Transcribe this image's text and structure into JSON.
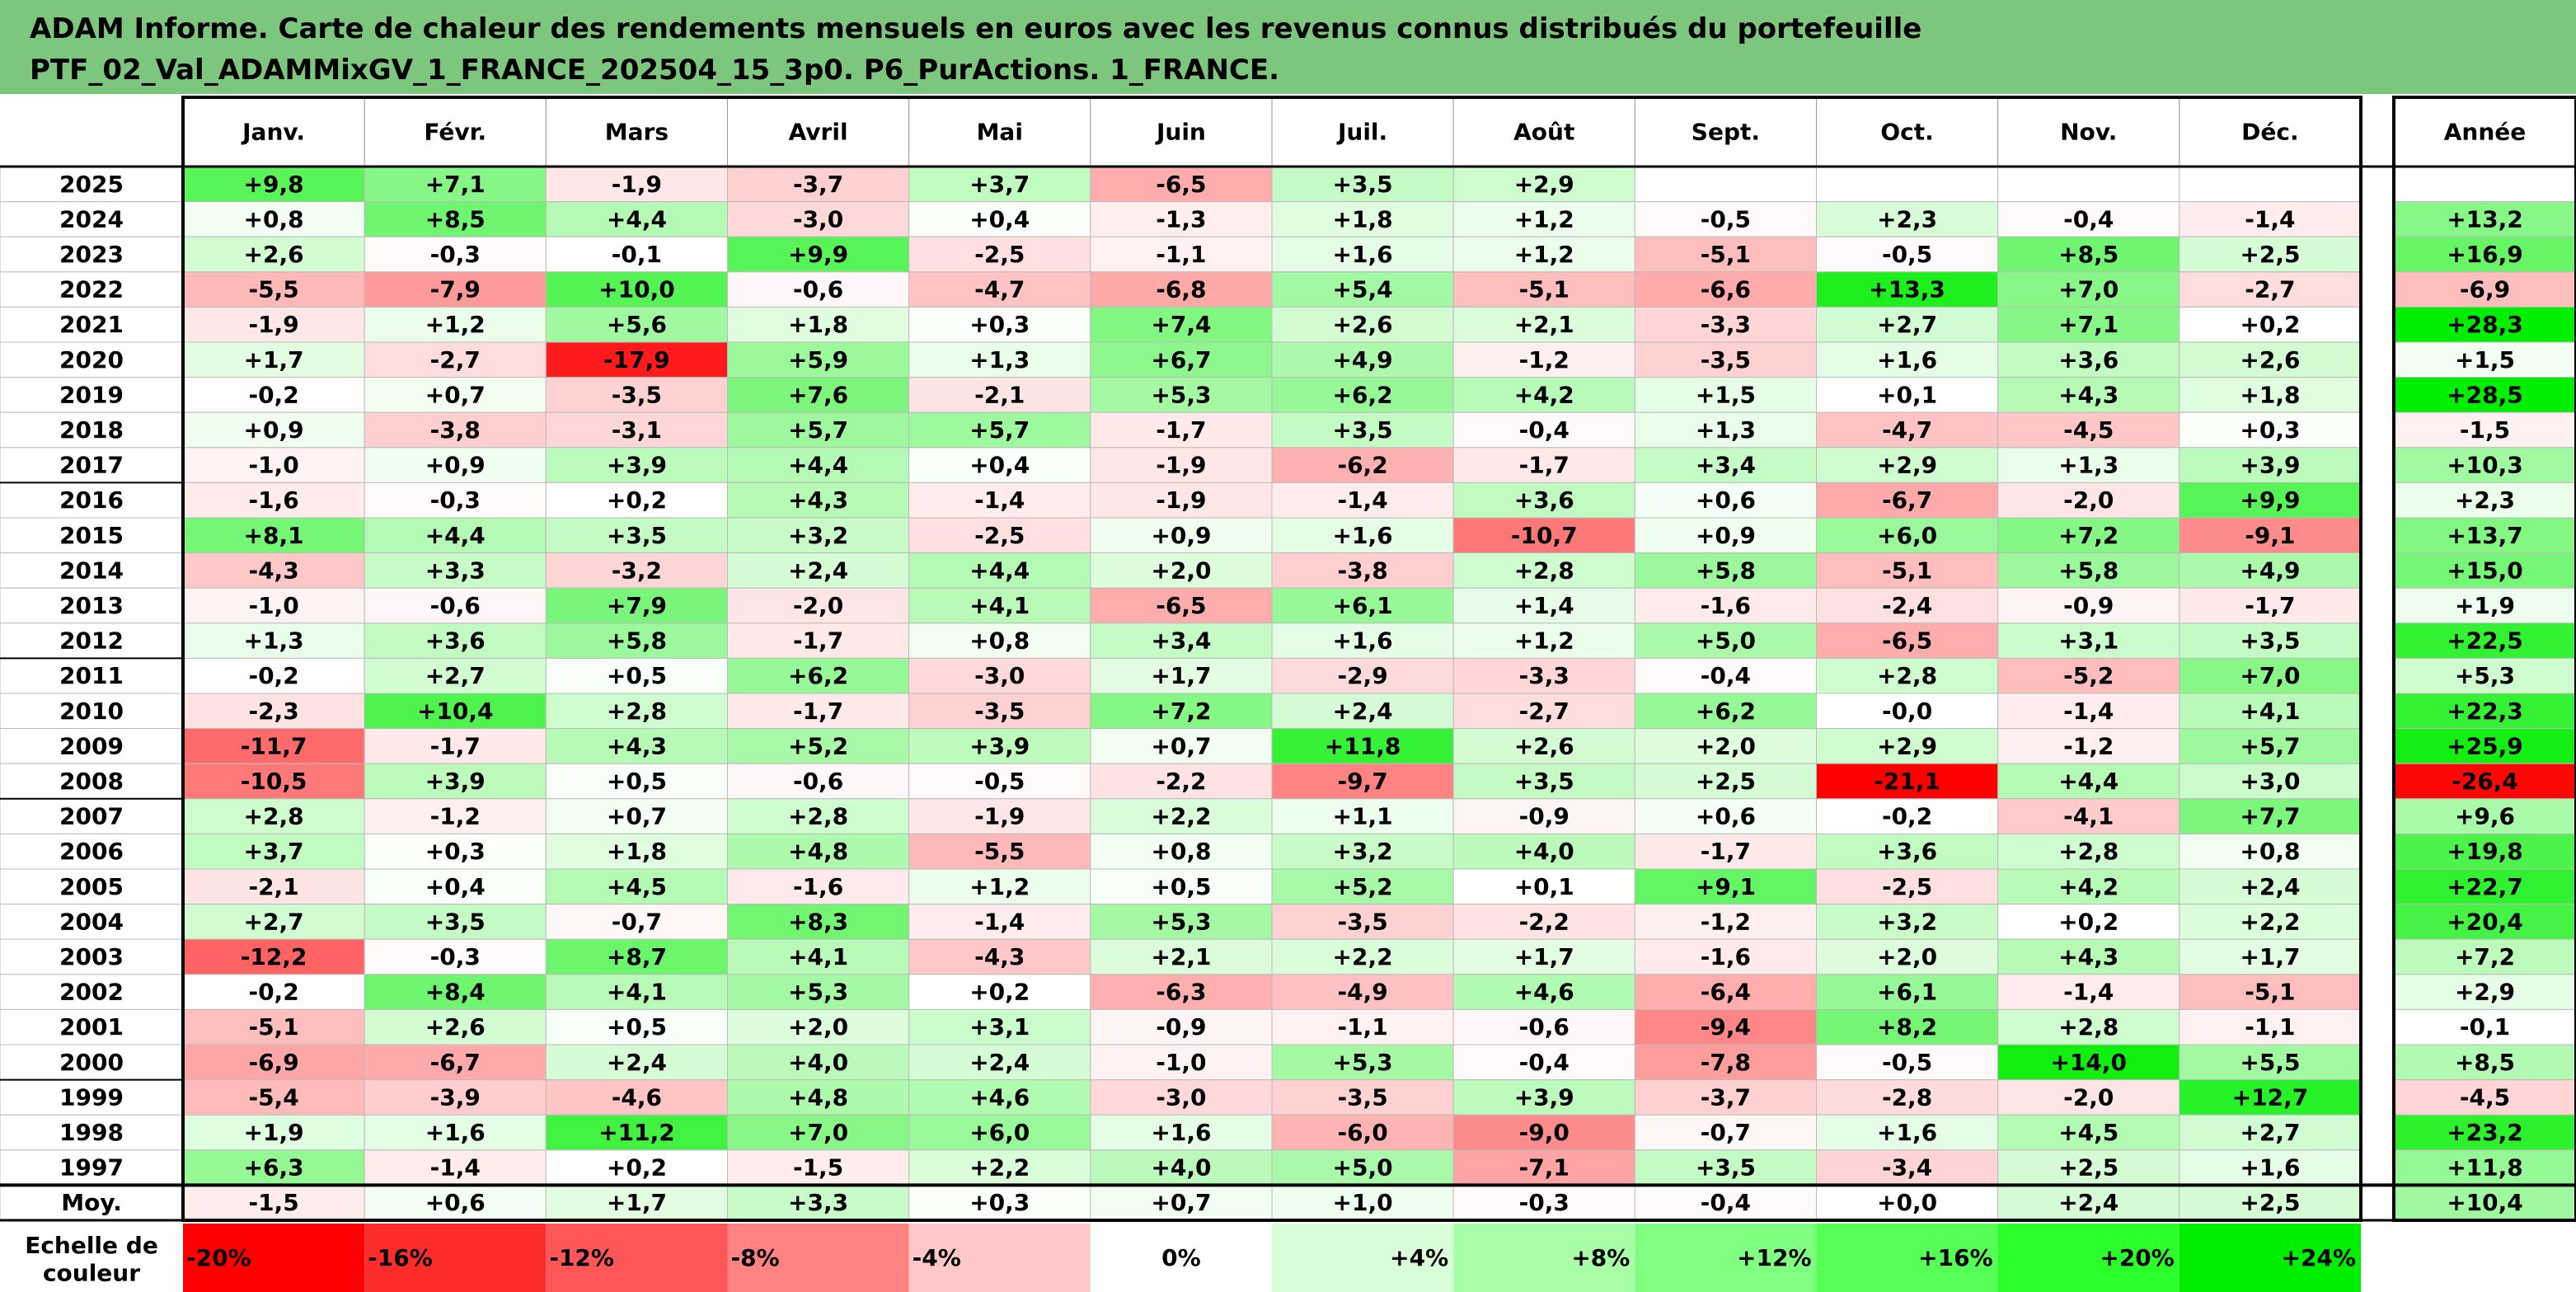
{
  "title": {
    "line1": "ADAM Informe. Carte de chaleur des rendements mensuels en euros avec les revenus connus distribués du portefeuille",
    "line2": "PTF_02_Val_ADAMMixGV_1_FRANCE_202504_15_3p0. P6_PurActions. 1_FRANCE."
  },
  "chart_data": {
    "type": "heatmap",
    "title": "ADAM Informe. Carte de chaleur des rendements mensuels en euros avec les revenus connus distribués du portefeuille PTF_02_Val_ADAMMixGV_1_FRANCE_202504_15_3p0. P6_PurActions. 1_FRANCE.",
    "columns": [
      "Janv.",
      "Févr.",
      "Mars",
      "Avril",
      "Mai",
      "Juin",
      "Juil.",
      "Août",
      "Sept.",
      "Oct.",
      "Nov.",
      "Déc."
    ],
    "year_column_label": "Année",
    "rows": [
      {
        "year": "2025",
        "values": [
          "+9,8",
          "+7,1",
          "-1,9",
          "-3,7",
          "+3,7",
          "-6,5",
          "+3,5",
          "+2,9",
          "",
          "",
          "",
          ""
        ],
        "annual": ""
      },
      {
        "year": "2024",
        "values": [
          "+0,8",
          "+8,5",
          "+4,4",
          "-3,0",
          "+0,4",
          "-1,3",
          "+1,8",
          "+1,2",
          "-0,5",
          "+2,3",
          "-0,4",
          "-1,4"
        ],
        "annual": "+13,2"
      },
      {
        "year": "2023",
        "values": [
          "+2,6",
          "-0,3",
          "-0,1",
          "+9,9",
          "-2,5",
          "-1,1",
          "+1,6",
          "+1,2",
          "-5,1",
          "-0,5",
          "+8,5",
          "+2,5"
        ],
        "annual": "+16,9"
      },
      {
        "year": "2022",
        "values": [
          "-5,5",
          "-7,9",
          "+10,0",
          "-0,6",
          "-4,7",
          "-6,8",
          "+5,4",
          "-5,1",
          "-6,6",
          "+13,3",
          "+7,0",
          "-2,7"
        ],
        "annual": "-6,9"
      },
      {
        "year": "2021",
        "values": [
          "-1,9",
          "+1,2",
          "+5,6",
          "+1,8",
          "+0,3",
          "+7,4",
          "+2,6",
          "+2,1",
          "-3,3",
          "+2,7",
          "+7,1",
          "+0,2"
        ],
        "annual": "+28,3"
      },
      {
        "year": "2020",
        "values": [
          "+1,7",
          "-2,7",
          "-17,9",
          "+5,9",
          "+1,3",
          "+6,7",
          "+4,9",
          "-1,2",
          "-3,5",
          "+1,6",
          "+3,6",
          "+2,6"
        ],
        "annual": "+1,5"
      },
      {
        "year": "2019",
        "values": [
          "-0,2",
          "+0,7",
          "-3,5",
          "+7,6",
          "-2,1",
          "+5,3",
          "+6,2",
          "+4,2",
          "+1,5",
          "+0,1",
          "+4,3",
          "+1,8"
        ],
        "annual": "+28,5"
      },
      {
        "year": "2018",
        "values": [
          "+0,9",
          "-3,8",
          "-3,1",
          "+5,7",
          "+5,7",
          "-1,7",
          "+3,5",
          "-0,4",
          "+1,3",
          "-4,7",
          "-4,5",
          "+0,3"
        ],
        "annual": "-1,5"
      },
      {
        "year": "2017",
        "values": [
          "-1,0",
          "+0,9",
          "+3,9",
          "+4,4",
          "+0,4",
          "-1,9",
          "-6,2",
          "-1,7",
          "+3,4",
          "+2,9",
          "+1,3",
          "+3,9"
        ],
        "annual": "+10,3"
      },
      {
        "year": "2016",
        "values": [
          "-1,6",
          "-0,3",
          "+0,2",
          "+4,3",
          "-1,4",
          "-1,9",
          "-1,4",
          "+3,6",
          "+0,6",
          "-6,7",
          "-2,0",
          "+9,9"
        ],
        "annual": "+2,3"
      },
      {
        "year": "2015",
        "values": [
          "+8,1",
          "+4,4",
          "+3,5",
          "+3,2",
          "-2,5",
          "+0,9",
          "+1,6",
          "-10,7",
          "+0,9",
          "+6,0",
          "+7,2",
          "-9,1"
        ],
        "annual": "+13,7"
      },
      {
        "year": "2014",
        "values": [
          "-4,3",
          "+3,3",
          "-3,2",
          "+2,4",
          "+4,4",
          "+2,0",
          "-3,8",
          "+2,8",
          "+5,8",
          "-5,1",
          "+5,8",
          "+4,9"
        ],
        "annual": "+15,0"
      },
      {
        "year": "2013",
        "values": [
          "-1,0",
          "-0,6",
          "+7,9",
          "-2,0",
          "+4,1",
          "-6,5",
          "+6,1",
          "+1,4",
          "-1,6",
          "-2,4",
          "-0,9",
          "-1,7"
        ],
        "annual": "+1,9"
      },
      {
        "year": "2012",
        "values": [
          "+1,3",
          "+3,6",
          "+5,8",
          "-1,7",
          "+0,8",
          "+3,4",
          "+1,6",
          "+1,2",
          "+5,0",
          "-6,5",
          "+3,1",
          "+3,5"
        ],
        "annual": "+22,5"
      },
      {
        "year": "2011",
        "values": [
          "-0,2",
          "+2,7",
          "+0,5",
          "+6,2",
          "-3,0",
          "+1,7",
          "-2,9",
          "-3,3",
          "-0,4",
          "+2,8",
          "-5,2",
          "+7,0"
        ],
        "annual": "+5,3"
      },
      {
        "year": "2010",
        "values": [
          "-2,3",
          "+10,4",
          "+2,8",
          "-1,7",
          "-3,5",
          "+7,2",
          "+2,4",
          "-2,7",
          "+6,2",
          "-0,0",
          "-1,4",
          "+4,1"
        ],
        "annual": "+22,3"
      },
      {
        "year": "2009",
        "values": [
          "-11,7",
          "-1,7",
          "+4,3",
          "+5,2",
          "+3,9",
          "+0,7",
          "+11,8",
          "+2,6",
          "+2,0",
          "+2,9",
          "-1,2",
          "+5,7"
        ],
        "annual": "+25,9"
      },
      {
        "year": "2008",
        "values": [
          "-10,5",
          "+3,9",
          "+0,5",
          "-0,6",
          "-0,5",
          "-2,2",
          "-9,7",
          "+3,5",
          "+2,5",
          "-21,1",
          "+4,4",
          "+3,0"
        ],
        "annual": "-26,4"
      },
      {
        "year": "2007",
        "values": [
          "+2,8",
          "-1,2",
          "+0,7",
          "+2,8",
          "-1,9",
          "+2,2",
          "+1,1",
          "-0,9",
          "+0,6",
          "-0,2",
          "-4,1",
          "+7,7"
        ],
        "annual": "+9,6"
      },
      {
        "year": "2006",
        "values": [
          "+3,7",
          "+0,3",
          "+1,8",
          "+4,8",
          "-5,5",
          "+0,8",
          "+3,2",
          "+4,0",
          "-1,7",
          "+3,6",
          "+2,8",
          "+0,8"
        ],
        "annual": "+19,8"
      },
      {
        "year": "2005",
        "values": [
          "-2,1",
          "+0,4",
          "+4,5",
          "-1,6",
          "+1,2",
          "+0,5",
          "+5,2",
          "+0,1",
          "+9,1",
          "-2,5",
          "+4,2",
          "+2,4"
        ],
        "annual": "+22,7"
      },
      {
        "year": "2004",
        "values": [
          "+2,7",
          "+3,5",
          "-0,7",
          "+8,3",
          "-1,4",
          "+5,3",
          "-3,5",
          "-2,2",
          "-1,2",
          "+3,2",
          "+0,2",
          "+2,2"
        ],
        "annual": "+20,4"
      },
      {
        "year": "2003",
        "values": [
          "-12,2",
          "-0,3",
          "+8,7",
          "+4,1",
          "-4,3",
          "+2,1",
          "+2,2",
          "+1,7",
          "-1,6",
          "+2,0",
          "+4,3",
          "+1,7"
        ],
        "annual": "+7,2"
      },
      {
        "year": "2002",
        "values": [
          "-0,2",
          "+8,4",
          "+4,1",
          "+5,3",
          "+0,2",
          "-6,3",
          "-4,9",
          "+4,6",
          "-6,4",
          "+6,1",
          "-1,4",
          "-5,1"
        ],
        "annual": "+2,9"
      },
      {
        "year": "2001",
        "values": [
          "-5,1",
          "+2,6",
          "+0,5",
          "+2,0",
          "+3,1",
          "-0,9",
          "-1,1",
          "-0,6",
          "-9,4",
          "+8,2",
          "+2,8",
          "-1,1"
        ],
        "annual": "-0,1"
      },
      {
        "year": "2000",
        "values": [
          "-6,9",
          "-6,7",
          "+2,4",
          "+4,0",
          "+2,4",
          "-1,0",
          "+5,3",
          "-0,4",
          "-7,8",
          "-0,5",
          "+14,0",
          "+5,5"
        ],
        "annual": "+8,5"
      },
      {
        "year": "1999",
        "values": [
          "-5,4",
          "-3,9",
          "-4,6",
          "+4,8",
          "+4,6",
          "-3,0",
          "-3,5",
          "+3,9",
          "-3,7",
          "-2,8",
          "-2,0",
          "+12,7"
        ],
        "annual": "-4,5"
      },
      {
        "year": "1998",
        "values": [
          "+1,9",
          "+1,6",
          "+11,2",
          "+7,0",
          "+6,0",
          "+1,6",
          "-6,0",
          "-9,0",
          "-0,7",
          "+1,6",
          "+4,5",
          "+2,7"
        ],
        "annual": "+23,2"
      },
      {
        "year": "1997",
        "values": [
          "+6,3",
          "-1,4",
          "+0,2",
          "-1,5",
          "+2,2",
          "+4,0",
          "+5,0",
          "-7,1",
          "+3,5",
          "-3,4",
          "+2,5",
          "+1,6"
        ],
        "annual": "+11,8"
      }
    ],
    "average": {
      "label": "Moy.",
      "values": [
        "-1,5",
        "+0,6",
        "+1,7",
        "+3,3",
        "+0,3",
        "+0,7",
        "+1,0",
        "-0,3",
        "-0,4",
        "+0,0",
        "+2,4",
        "+2,5"
      ],
      "annual": "+10,4"
    },
    "color_scale": {
      "label_line1": "Echelle de",
      "label_line2": "couleur",
      "stops": [
        "-20%",
        "-16%",
        "-12%",
        "-8%",
        "-4%",
        "0%",
        "+4%",
        "+8%",
        "+12%",
        "+16%",
        "+20%",
        "+24%"
      ],
      "colors": [
        "#ff0000",
        "#ff2c2c",
        "#ff5757",
        "#ff8383",
        "#ffc8c8",
        "#ffffff",
        "#d8ffd8",
        "#a8ffa8",
        "#80ff80",
        "#55ff55",
        "#2aff2a",
        "#00ee00"
      ]
    },
    "colors": {
      "negative_max": "#ff0000",
      "positive_max": "#00ee00",
      "header_background": "#7dc67d",
      "grid": "#000000"
    }
  }
}
